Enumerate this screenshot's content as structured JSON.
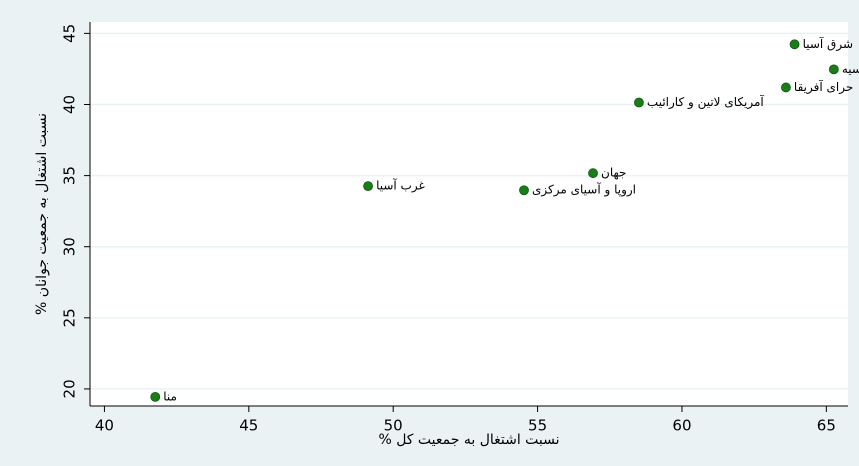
{
  "chart_data": {
    "type": "scatter",
    "xlabel": "% نسبت اشتغال به جمعیت کل",
    "ylabel": "% نسبت اشتغال به جمعیت جوانان",
    "x": [
      63.9,
      65.26,
      63.6,
      58.51,
      56.92,
      49.13,
      54.53,
      41.76
    ],
    "y": [
      44.23,
      42.47,
      41.2,
      40.14,
      35.17,
      34.26,
      33.97,
      19.44
    ],
    "point_labels": [
      "شرق آسیا",
      "سیه",
      "حرای آفریقا",
      "آمریکای لاتین و کارائیب",
      "جهان",
      "غرب آسیا",
      "اروپا و آسیای مرکزی",
      "منا"
    ],
    "color": "#1a7d1a",
    "label_color": "#1a476f",
    "xlim": [
      39.5,
      65.75
    ],
    "xticks": [
      40,
      45,
      50,
      55,
      60,
      65
    ],
    "ylim": [
      18.8,
      45.8
    ],
    "yticks": [
      20,
      25,
      30,
      35,
      40,
      45
    ],
    "grid": true
  }
}
